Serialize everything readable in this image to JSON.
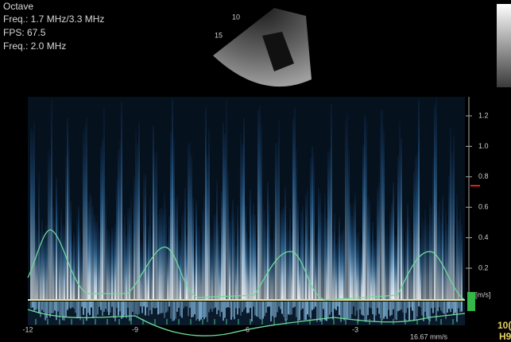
{
  "header": {
    "lines": [
      "Octave",
      "Freq.: 1.7 MHz/3.3 MHz",
      "FPS: 67.5",
      "Freq.: 2.0 MHz"
    ]
  },
  "sector": {
    "depth_labels": [
      "10",
      "15"
    ]
  },
  "velocity_scale": {
    "labels": [
      "1.2",
      "1.0",
      "0.8",
      "0.6",
      "0.4",
      "0.2"
    ],
    "unit": "[m/s]"
  },
  "time_axis": {
    "labels": [
      "-12",
      "-9",
      "-6",
      "-3"
    ]
  },
  "sweep_speed": "16.67 mm/s",
  "side_labels": [
    "10(",
    "H9"
  ]
}
